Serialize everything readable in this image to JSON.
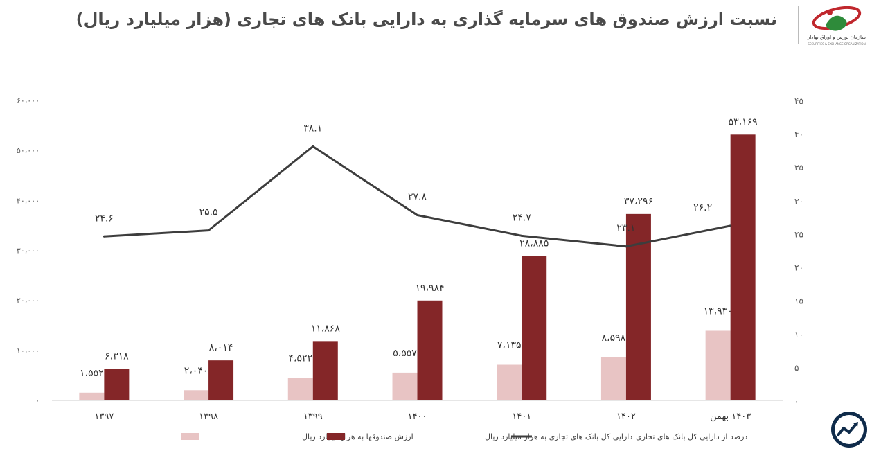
{
  "title": "نسبت ارزش صندوق های سرمایه گذاری به دارایی بانک های تجاری (هزار میلیارد ریال)",
  "logo": {
    "icon": "sebo-logo-icon",
    "text_fa": "سازمان بورس و اوراق بهادار",
    "text_en": "SECURITIES & EXCHANGE ORGANIZATION"
  },
  "badge_icon": "trend-badge-icon",
  "colors": {
    "funds": "#e8c4c4",
    "assets": "#842628",
    "line": "#3d3d3d",
    "axis": "#999999",
    "text": "#333333"
  },
  "chart_data": {
    "type": "bar",
    "title": "نسبت ارزش صندوق های سرمایه گذاری به دارایی بانک های تجاری (هزار میلیارد ریال)",
    "categories": [
      "۱۳۹۷",
      "۱۳۹۸",
      "۱۳۹۹",
      "۱۴۰۰",
      "۱۴۰۱",
      "۱۴۰۲",
      "۱۴۰۳ بهمن"
    ],
    "left_axis": {
      "ylim": [
        0,
        60000
      ],
      "ticks": [
        "۰",
        "۱۰،۰۰۰",
        "۲۰،۰۰۰",
        "۳۰،۰۰۰",
        "۴۰،۰۰۰",
        "۵۰،۰۰۰",
        "۶۰،۰۰۰"
      ]
    },
    "right_axis": {
      "ylim": [
        0,
        45
      ],
      "ticks": [
        "۰",
        "۵",
        "۱۰",
        "۱۵",
        "۲۰",
        "۲۵",
        "۳۰",
        "۳۵",
        "۴۰",
        "۴۵"
      ]
    },
    "series": [
      {
        "name": "ارزش صندوقها به هزار میلیارد ریال",
        "type": "bar",
        "axis": "left",
        "values": [
          1552,
          2040,
          4522,
          5557,
          7135,
          8598,
          13930
        ],
        "labels": [
          "۱،۵۵۲",
          "۲،۰۴۰",
          "۴،۵۲۲",
          "۵،۵۵۷",
          "۷،۱۳۵",
          "۸،۵۹۸",
          "۱۳،۹۳۰"
        ]
      },
      {
        "name": "دارایی کل بانک های تجاری به هزار میلیارد ریال",
        "type": "bar",
        "axis": "left",
        "values": [
          6318,
          8014,
          11868,
          19984,
          28885,
          37296,
          53169
        ],
        "labels": [
          "۶،۳۱۸",
          "۸،۰۱۴",
          "۱۱،۸۶۸",
          "۱۹،۹۸۴",
          "۲۸،۸۸۵",
          "۳۷،۲۹۶",
          "۵۳،۱۶۹"
        ]
      },
      {
        "name": "درصد از دارایی کل بانک های تجاری",
        "type": "line",
        "axis": "right",
        "values": [
          24.6,
          25.5,
          38.1,
          27.8,
          24.7,
          23.1,
          26.2
        ],
        "labels": [
          "۲۴.۶",
          "۲۵.۵",
          "۳۸.۱",
          "۲۷.۸",
          "۲۴.۷",
          "۲۳.۱",
          "۲۶.۲"
        ]
      }
    ],
    "legend": [
      "ارزش صندوقها به هزار میلیارد ریال",
      "دارایی کل بانک های تجاری به هزار میلیارد ریال",
      "درصد از دارایی کل بانک های تجاری"
    ],
    "legend_position": "bottom"
  }
}
